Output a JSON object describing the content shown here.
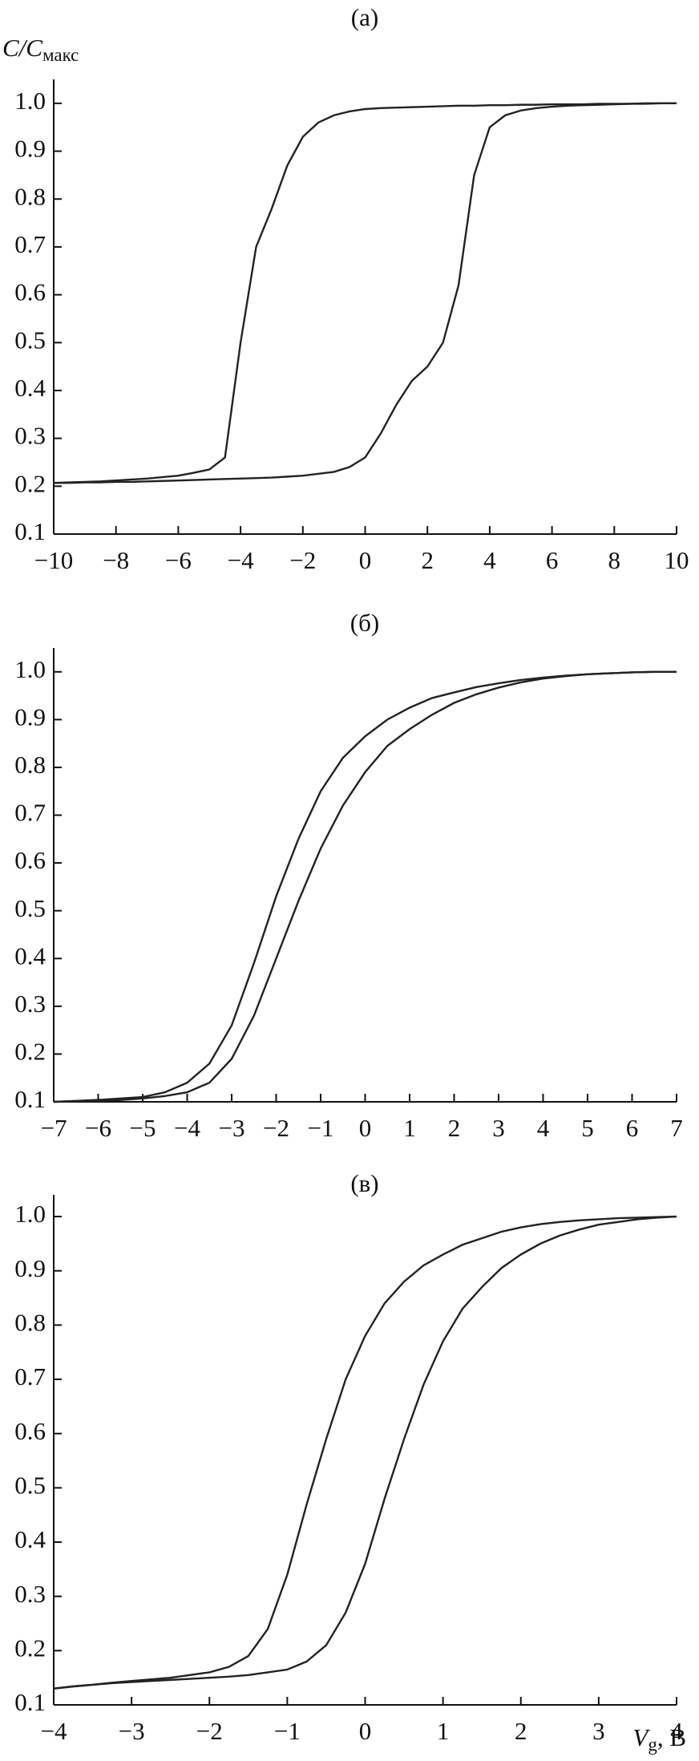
{
  "chart_data": [
    {
      "type": "line",
      "title": "(а)",
      "ylabel": [
        "C/C",
        "макс"
      ],
      "x": [
        -10,
        -9.5,
        -9,
        -8.5,
        -8,
        -7.5,
        -7,
        -6.5,
        -6,
        -5.5,
        -5,
        -4.5,
        -4,
        -3.5,
        -3,
        -2.5,
        -2,
        -1.5,
        -1,
        -0.5,
        0,
        0.5,
        1,
        1.5,
        2,
        2.5,
        3,
        3.5,
        4,
        4.5,
        5,
        5.5,
        6,
        6.5,
        7,
        7.5,
        8,
        8.5,
        9,
        9.5,
        10
      ],
      "series": [
        {
          "color": "#222222",
          "values": [
            0.207,
            0.208,
            0.209,
            0.21,
            0.212,
            0.214,
            0.216,
            0.219,
            0.222,
            0.228,
            0.235,
            0.26,
            0.5,
            0.7,
            0.78,
            0.87,
            0.93,
            0.96,
            0.975,
            0.983,
            0.988,
            0.99,
            0.991,
            0.992,
            0.993,
            0.994,
            0.995,
            0.995,
            0.996,
            0.996,
            0.997,
            0.997,
            0.998,
            0.998,
            0.998,
            0.999,
            0.999,
            0.999,
            1.0,
            1.0,
            1.0
          ]
        },
        {
          "color": "#222222",
          "values": [
            0.207,
            0.207,
            0.208,
            0.208,
            0.209,
            0.209,
            0.21,
            0.211,
            0.212,
            0.213,
            0.214,
            0.215,
            0.216,
            0.217,
            0.218,
            0.22,
            0.222,
            0.226,
            0.23,
            0.24,
            0.26,
            0.31,
            0.37,
            0.42,
            0.45,
            0.5,
            0.62,
            0.85,
            0.95,
            0.975,
            0.985,
            0.99,
            0.993,
            0.995,
            0.996,
            0.997,
            0.998,
            0.999,
            0.999,
            1.0,
            1.0
          ]
        }
      ],
      "xlim": [
        -10,
        10
      ],
      "xticks": [
        {
          "value": -10,
          "label": "−10"
        },
        {
          "value": -8,
          "label": "−8"
        },
        {
          "value": -6,
          "label": "−6"
        },
        {
          "value": -4,
          "label": "−4"
        },
        {
          "value": -2,
          "label": "−2"
        },
        0,
        2,
        4,
        6,
        8,
        10
      ],
      "ylim": [
        0.1,
        1.05
      ],
      "yticks": [
        0.1,
        0.2,
        0.3,
        0.4,
        0.5,
        0.6,
        0.7,
        0.8,
        0.9,
        {
          "value": 1,
          "label": "1.0"
        }
      ]
    },
    {
      "type": "line",
      "title": "(б)",
      "x": [
        -7,
        -6.5,
        -6,
        -5.5,
        -5,
        -4.5,
        -4,
        -3.5,
        -3,
        -2.5,
        -2,
        -1.5,
        -1,
        -0.5,
        0,
        0.5,
        1,
        1.5,
        2,
        2.5,
        3,
        3.5,
        4,
        4.5,
        5,
        5.5,
        6,
        6.5,
        7
      ],
      "series": [
        {
          "color": "#222222",
          "values": [
            0.1,
            0.102,
            0.104,
            0.107,
            0.11,
            0.12,
            0.14,
            0.18,
            0.26,
            0.39,
            0.53,
            0.65,
            0.75,
            0.82,
            0.865,
            0.9,
            0.925,
            0.945,
            0.957,
            0.968,
            0.976,
            0.983,
            0.988,
            0.992,
            0.995,
            0.997,
            0.999,
            1.0,
            1.0
          ]
        },
        {
          "color": "#222222",
          "values": [
            0.1,
            0.101,
            0.102,
            0.104,
            0.107,
            0.112,
            0.12,
            0.14,
            0.19,
            0.28,
            0.4,
            0.52,
            0.63,
            0.72,
            0.79,
            0.845,
            0.88,
            0.91,
            0.935,
            0.953,
            0.967,
            0.978,
            0.986,
            0.991,
            0.995,
            0.997,
            0.999,
            1.0,
            1.0
          ]
        }
      ],
      "xlim": [
        -7,
        7
      ],
      "xticks": [
        {
          "value": -7,
          "label": "−7"
        },
        {
          "value": -6,
          "label": "−6"
        },
        {
          "value": -5,
          "label": "−5"
        },
        {
          "value": -4,
          "label": "−4"
        },
        {
          "value": -3,
          "label": "−3"
        },
        {
          "value": -2,
          "label": "−2"
        },
        {
          "value": -1,
          "label": "−1"
        },
        0,
        1,
        2,
        3,
        4,
        5,
        6,
        7
      ],
      "ylim": [
        0.1,
        1.05
      ],
      "yticks": [
        0.1,
        0.2,
        0.3,
        0.4,
        0.5,
        0.6,
        0.7,
        0.8,
        0.9,
        {
          "value": 1,
          "label": "1.0"
        }
      ]
    },
    {
      "type": "line",
      "title": "(в)",
      "xlabel": [
        "V",
        "g",
        ", В"
      ],
      "x": [
        -4,
        -3.75,
        -3.5,
        -3.25,
        -3,
        -2.75,
        -2.5,
        -2.25,
        -2,
        -1.75,
        -1.5,
        -1.25,
        -1,
        -0.75,
        -0.5,
        -0.25,
        0,
        0.25,
        0.5,
        0.75,
        1,
        1.25,
        1.5,
        1.75,
        2,
        2.25,
        2.5,
        2.75,
        3,
        3.25,
        3.5,
        3.75,
        4
      ],
      "series": [
        {
          "color": "#222222",
          "values": [
            0.13,
            0.134,
            0.137,
            0.141,
            0.144,
            0.147,
            0.15,
            0.155,
            0.16,
            0.17,
            0.19,
            0.24,
            0.34,
            0.47,
            0.59,
            0.7,
            0.78,
            0.84,
            0.88,
            0.91,
            0.93,
            0.948,
            0.96,
            0.972,
            0.98,
            0.986,
            0.99,
            0.993,
            0.995,
            0.997,
            0.998,
            0.999,
            1.0
          ]
        },
        {
          "color": "#222222",
          "values": [
            0.13,
            0.134,
            0.137,
            0.14,
            0.142,
            0.144,
            0.146,
            0.148,
            0.15,
            0.152,
            0.155,
            0.16,
            0.165,
            0.18,
            0.21,
            0.27,
            0.36,
            0.48,
            0.59,
            0.69,
            0.77,
            0.83,
            0.87,
            0.905,
            0.93,
            0.95,
            0.965,
            0.976,
            0.985,
            0.99,
            0.995,
            0.998,
            1.0
          ]
        }
      ],
      "xlim": [
        -4,
        4
      ],
      "xticks": [
        {
          "value": -4,
          "label": "−4"
        },
        {
          "value": -3,
          "label": "−3"
        },
        {
          "value": -2,
          "label": "−2"
        },
        {
          "value": -1,
          "label": "−1"
        },
        0,
        1,
        2,
        3,
        4
      ],
      "ylim": [
        0.1,
        1.04
      ],
      "yticks": [
        0.1,
        0.2,
        0.3,
        0.4,
        0.5,
        0.6,
        0.7,
        0.8,
        0.9,
        {
          "value": 1,
          "label": "1.0"
        }
      ]
    }
  ]
}
